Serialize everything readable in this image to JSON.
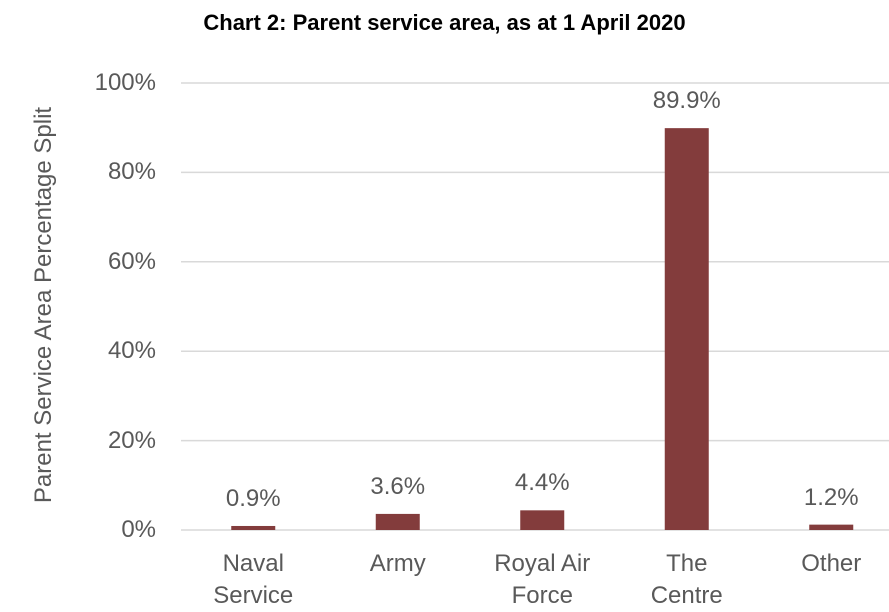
{
  "chart_data": {
    "type": "bar",
    "title": "Chart 2: Parent service area, as at 1 April 2020",
    "y_label": "Parent Service Area Percentage Split",
    "categories": [
      "Naval Service",
      "Army",
      "Royal Air Force",
      "The Centre",
      "Other"
    ],
    "values": [
      0.9,
      3.6,
      4.4,
      89.9,
      1.2
    ],
    "value_labels": [
      "0.9%",
      "3.6%",
      "4.4%",
      "89.9%",
      "1.2%"
    ],
    "color": "#833c3c",
    "ylim": [
      0,
      100
    ],
    "yticks": [
      {
        "value": 0,
        "label": "0%"
      },
      {
        "value": 20,
        "label": "20%"
      },
      {
        "value": 40,
        "label": "40%"
      },
      {
        "value": 60,
        "label": "60%"
      },
      {
        "value": 80,
        "label": "80%"
      },
      {
        "value": 100,
        "label": "100%"
      }
    ],
    "grid": true
  }
}
